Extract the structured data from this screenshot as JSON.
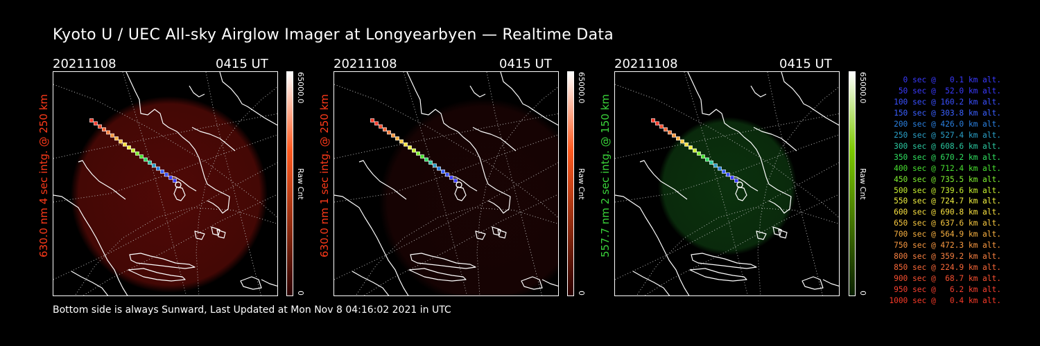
{
  "title": "Kyoto U / UEC All-sky Airglow Imager at Longyearbyen — Realtime Data",
  "footer": "Bottom side is always Sunward, Last Updated at Mon Nov  8 04:16:02 2021 in UTC",
  "panels": [
    {
      "date": "20211108",
      "time": "0415 UT",
      "label": "630.0 nm  4 sec intg. @ 250 km",
      "label_color": "#ff3a1a",
      "glow_color": "#6a0c08",
      "glow_opacity": 0.75,
      "colorbar_top": "#ffffff",
      "colorbar_mid": "#ff5a20",
      "colorbar_bot": "#2a0000",
      "cbar_max": "65000.0",
      "cbar_unit": "Raw Cnt",
      "cbar_min": "0"
    },
    {
      "date": "20211108",
      "time": "0415 UT",
      "label": "630.0 nm  1 sec intg. @ 250 km",
      "label_color": "#ff3a1a",
      "glow_color": "#2a0606",
      "glow_opacity": 0.6,
      "colorbar_top": "#ffffff",
      "colorbar_mid": "#ff5a20",
      "colorbar_bot": "#2a0000",
      "cbar_max": "65000.0",
      "cbar_unit": "Raw Cnt",
      "cbar_min": "0"
    },
    {
      "date": "20211108",
      "time": "0415 UT",
      "label": "557.7 nm  2 sec intg. @ 150 km",
      "label_color": "#3ad43a",
      "glow_color": "#0d3a10",
      "glow_opacity": 0.85,
      "colorbar_top": "#ffffff",
      "colorbar_mid": "#7cc800",
      "colorbar_bot": "#0a2000",
      "cbar_max": "65000.0",
      "cbar_unit": "Raw Cnt",
      "cbar_min": "0"
    }
  ],
  "trajectory_legend": [
    {
      "text": "   0 sec @   0.1 km alt.",
      "color": "#3a3aff"
    },
    {
      "text": "  50 sec @  52.0 km alt.",
      "color": "#3a3aff"
    },
    {
      "text": " 100 sec @ 160.2 km alt.",
      "color": "#3a50ff"
    },
    {
      "text": " 150 sec @ 303.8 km alt.",
      "color": "#3a60ff"
    },
    {
      "text": " 200 sec @ 426.0 km alt.",
      "color": "#2a80e0"
    },
    {
      "text": " 250 sec @ 527.4 km alt.",
      "color": "#2aa0c8"
    },
    {
      "text": " 300 sec @ 608.6 km alt.",
      "color": "#2ac8a0"
    },
    {
      "text": " 350 sec @ 670.2 km alt.",
      "color": "#30e060"
    },
    {
      "text": " 400 sec @ 712.4 km alt.",
      "color": "#48e030"
    },
    {
      "text": " 450 sec @ 735.5 km alt.",
      "color": "#80f030"
    },
    {
      "text": " 500 sec @ 739.6 km alt.",
      "color": "#c8f030"
    },
    {
      "text": " 550 sec @ 724.7 km alt.",
      "color": "#f0f040"
    },
    {
      "text": " 600 sec @ 690.8 km alt.",
      "color": "#f8e040"
    },
    {
      "text": " 650 sec @ 637.6 km alt.",
      "color": "#f8c840"
    },
    {
      "text": " 700 sec @ 564.9 km alt.",
      "color": "#f8b040"
    },
    {
      "text": " 750 sec @ 472.3 km alt.",
      "color": "#f89840"
    },
    {
      "text": " 800 sec @ 359.2 km alt.",
      "color": "#f88040"
    },
    {
      "text": " 850 sec @ 224.9 km alt.",
      "color": "#f86838"
    },
    {
      "text": " 900 sec @  68.7 km alt.",
      "color": "#f85030"
    },
    {
      "text": " 950 sec @   6.2 km alt.",
      "color": "#f84030"
    },
    {
      "text": "1000 sec @   0.4 km alt.",
      "color": "#f83a28"
    }
  ]
}
